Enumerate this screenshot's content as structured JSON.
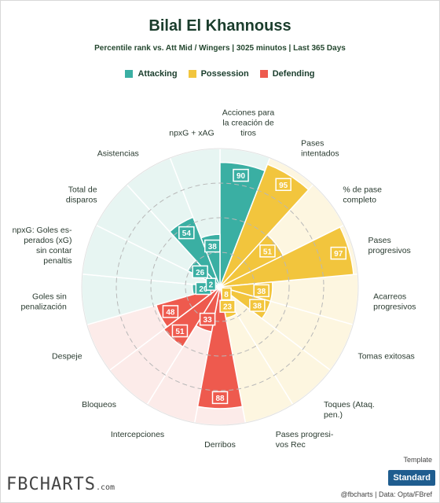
{
  "title": "Bilal El Khannouss",
  "subtitle": "Percentile rank vs. Att Mid / Wingers | 3025 minutos | Last 365 Days",
  "legend": [
    {
      "label": "Attacking",
      "color": "#3aafa3"
    },
    {
      "label": "Possession",
      "color": "#f2c53d"
    },
    {
      "label": "Defending",
      "color": "#ee5a4e"
    }
  ],
  "footer": {
    "logo": "FBCHARTS",
    "logo_suffix": ".com",
    "credit": "@fbcharts | Data: Opta/FBref",
    "template_label": "Template",
    "template_value": "Standard"
  },
  "chart_data": {
    "type": "polar-bar",
    "rlim": [
      0,
      100
    ],
    "grid": true,
    "categories": [
      {
        "label": [
          "Acciones para",
          "la creación de",
          "tiros"
        ],
        "group": "Attacking",
        "value": 90
      },
      {
        "label": [
          "Pases",
          "intentados"
        ],
        "group": "Possession",
        "value": 95
      },
      {
        "label": [
          "% de pase",
          "completo"
        ],
        "group": "Possession",
        "value": 51
      },
      {
        "label": [
          "Pases",
          "progresivos"
        ],
        "group": "Possession",
        "value": 97
      },
      {
        "label": [
          "Acarreos",
          "progresivos"
        ],
        "group": "Possession",
        "value": 38
      },
      {
        "label": [
          "Tomas exitosas"
        ],
        "group": "Possession",
        "value": 38
      },
      {
        "label": [
          "Toques (Ataq.",
          "pen.)"
        ],
        "group": "Possession",
        "value": 8
      },
      {
        "label": [
          "Pases progresi-",
          "vos Rec"
        ],
        "group": "Possession",
        "value": 23
      },
      {
        "label": [
          "Derribos"
        ],
        "group": "Defending",
        "value": 88
      },
      {
        "label": [
          "Intercepciones"
        ],
        "group": "Defending",
        "value": 33
      },
      {
        "label": [
          "Bloqueos"
        ],
        "group": "Defending",
        "value": 51
      },
      {
        "label": [
          "Despeje"
        ],
        "group": "Defending",
        "value": 48
      },
      {
        "label": [
          "Goles sin",
          "penalización"
        ],
        "group": "Attacking",
        "value": 20
      },
      {
        "label": [
          "npxG: Goles es-",
          "perados (xG)",
          "sin contar",
          "penaltis"
        ],
        "group": "Attacking",
        "value": 2
      },
      {
        "label": [
          "Total de",
          "disparos"
        ],
        "group": "Attacking",
        "value": 26
      },
      {
        "label": [
          "Asistencias"
        ],
        "group": "Attacking",
        "value": 54
      },
      {
        "label": [
          "npxG + xAG"
        ],
        "group": "Attacking",
        "value": 38
      }
    ]
  }
}
